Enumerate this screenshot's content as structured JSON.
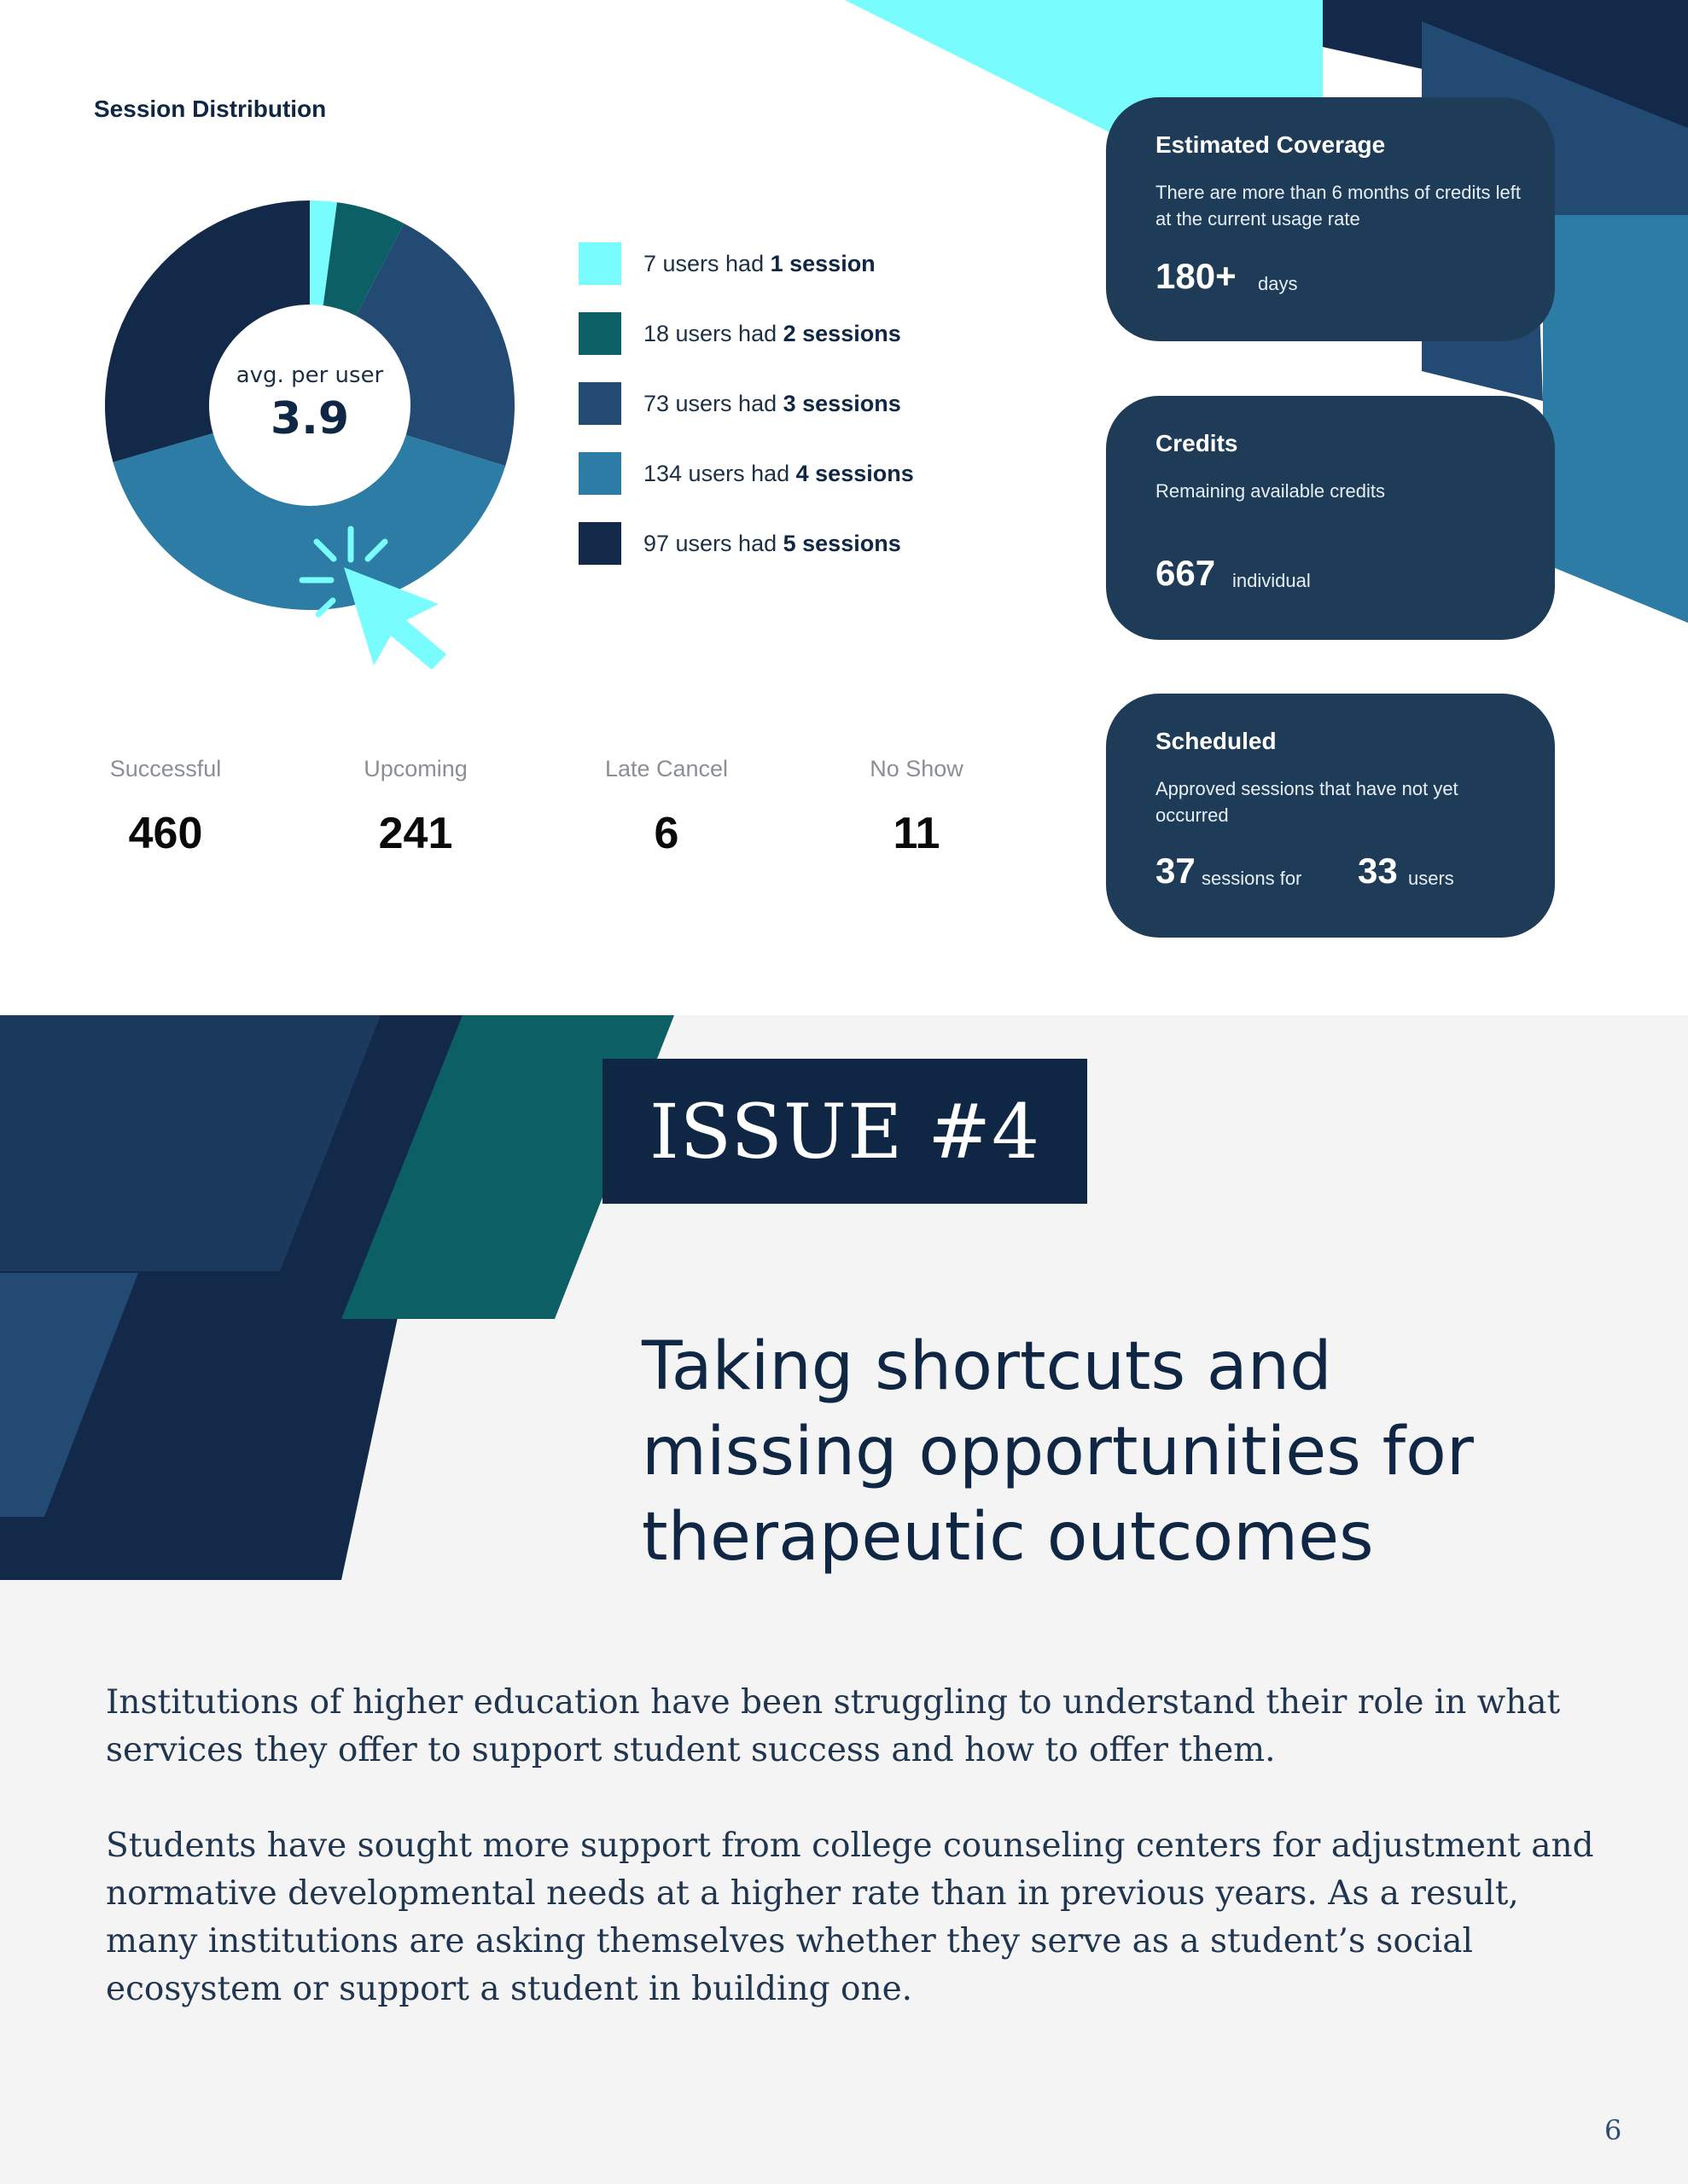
{
  "colors": {
    "cyan": "#78fcfd",
    "teal": "#0c5f64",
    "slate_blue": "#234a73",
    "steel_blue": "#2c7ca5",
    "navy": "#12294a",
    "card_bg": "#1e3c58",
    "lower_bg": "#f4f4f4"
  },
  "distribution": {
    "title": "Session Distribution",
    "center_label": "avg. per user",
    "center_value": "3.9",
    "legend": [
      {
        "prefix": "7 users had",
        "bold": "1 session",
        "users": 7,
        "color": "#78fcfd"
      },
      {
        "prefix": "18 users had",
        "bold": "2 sessions",
        "users": 18,
        "color": "#0c5f64"
      },
      {
        "prefix": "73 users had",
        "bold": "3 sessions",
        "users": 73,
        "color": "#234a73"
      },
      {
        "prefix": "134 users had",
        "bold": "4 sessions",
        "users": 134,
        "color": "#2c7ca5"
      },
      {
        "prefix": "97 users had",
        "bold": "5 sessions",
        "users": 97,
        "color": "#12294a"
      }
    ],
    "cursor_icon": "cursor-click-icon"
  },
  "stats": [
    {
      "label": "Successful",
      "value": "460"
    },
    {
      "label": "Upcoming",
      "value": "241"
    },
    {
      "label": "Late Cancel",
      "value": "6"
    },
    {
      "label": "No Show",
      "value": "11"
    }
  ],
  "cards": {
    "coverage": {
      "title": "Estimated Coverage",
      "description": "There are more than 6 months of credits left at the current usage rate",
      "value": "180+",
      "unit": "days"
    },
    "credits": {
      "title": "Credits",
      "description": "Remaining available credits",
      "value": "667",
      "unit": "individual"
    },
    "scheduled": {
      "title": "Scheduled",
      "description": "Approved sessions that have not yet occurred",
      "sessions_value": "37",
      "sessions_unit": "sessions for",
      "users_value": "33",
      "users_unit": "users"
    }
  },
  "issue": {
    "label": "ISSUE #4",
    "headline": [
      "Taking shortcuts and",
      "missing opportunities for",
      "therapeutic outcomes"
    ],
    "paragraphs": [
      [
        "Institutions of higher education have been struggling to understand their role in what",
        "services they offer to support student success and how to offer them."
      ],
      [
        "Students have sought more support from college counseling centers for adjustment and",
        "normative developmental needs at a higher rate than in previous years. As a result,",
        "many institutions are asking themselves whether they serve as a student’s social",
        "ecosystem or support a student in building one."
      ]
    ]
  },
  "page_number": "6"
}
